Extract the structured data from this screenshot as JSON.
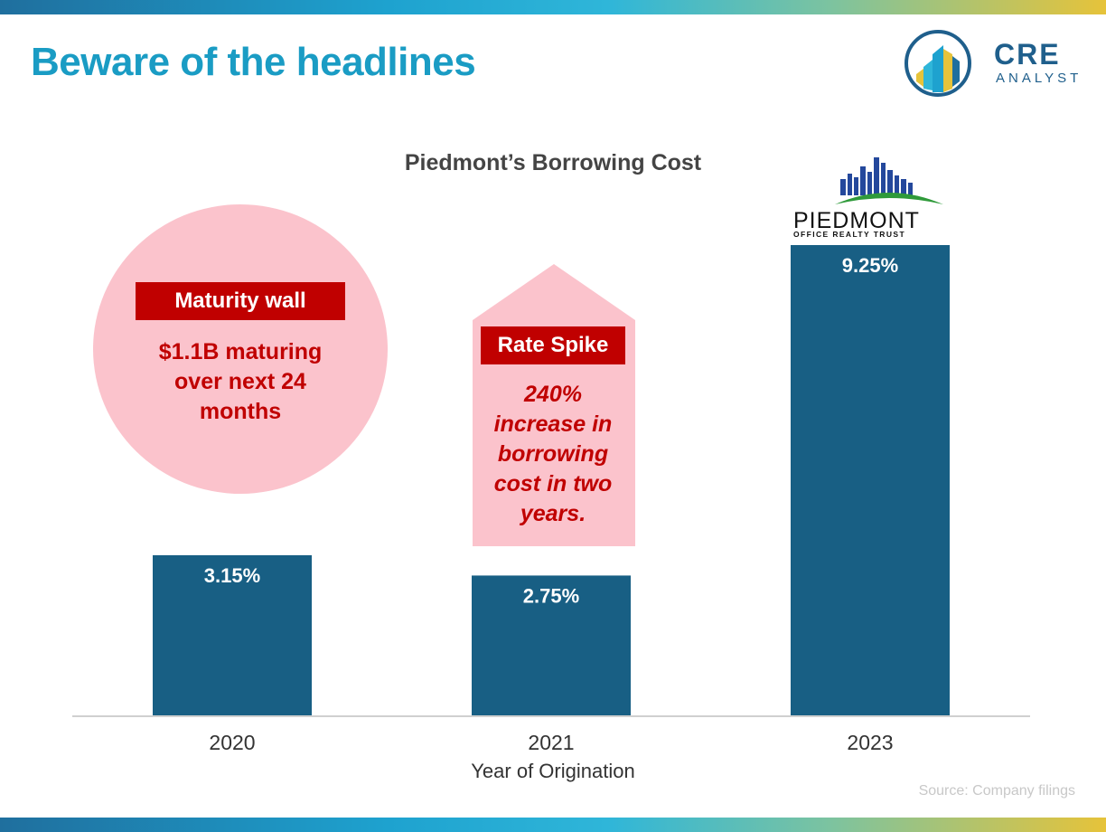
{
  "slide": {
    "title": "Beware of the headlines",
    "source": "Source: Company filings"
  },
  "brand_logo": {
    "line1": "CRE",
    "line2": "ANALYST"
  },
  "company_logo": {
    "name": "PIEDMONT",
    "subtitle": "OFFICE REALTY TRUST"
  },
  "callouts": {
    "maturity": {
      "tag": "Maturity wall",
      "lines": [
        "$1.1B maturing",
        "over next 24",
        "months"
      ]
    },
    "spike": {
      "tag": "Rate Spike",
      "lines": [
        "240%",
        "increase in",
        "borrowing",
        "cost in two",
        "years."
      ]
    }
  },
  "colors": {
    "bar": "#185f84",
    "accent_red": "#c00000",
    "callout_pink": "#fbc3cc",
    "title_blue": "#1a9cc4"
  },
  "chart_data": {
    "type": "bar",
    "title": "Piedmont’s Borrowing Cost",
    "xlabel": "Year of Origination",
    "ylabel": "",
    "categories": [
      "2020",
      "2021",
      "2023"
    ],
    "values": [
      3.15,
      2.75,
      9.25
    ],
    "value_labels": [
      "3.15%",
      "2.75%",
      "9.25%"
    ],
    "ylim": [
      0,
      9.25
    ],
    "grid": false,
    "legend": "none"
  }
}
